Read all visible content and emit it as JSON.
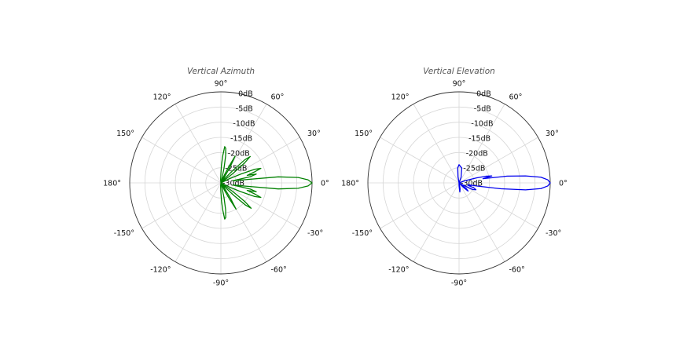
{
  "chart_data": [
    {
      "type": "polar-line",
      "title": "Vertical Azimuth",
      "color": "#008000",
      "angle_ticks": [
        "0°",
        "30°",
        "60°",
        "90°",
        "120°",
        "150°",
        "180°",
        "-150°",
        "-120°",
        "-90°",
        "-60°",
        "-30°"
      ],
      "radial_ticks": [
        "0dB",
        "-5dB",
        "-10dB",
        "-15dB",
        "-20dB",
        "-25dB",
        "-30dB"
      ],
      "r_range_dB": [
        -30,
        0
      ],
      "grid": true,
      "series": [
        {
          "angles_deg": [
            -180,
            -160,
            -140,
            -120,
            -110,
            -100,
            -95,
            -90,
            -88,
            -86,
            -84,
            -82,
            -80,
            -78,
            -76,
            -74,
            -70,
            -66,
            -64,
            -62,
            -60,
            -58,
            -56,
            -54,
            -50,
            -46,
            -44,
            -42,
            -40,
            -38,
            -36,
            -34,
            -30,
            -26,
            -24,
            -22,
            -20,
            -18,
            -16,
            -14,
            -12,
            -10,
            -8,
            -6,
            -4,
            -2,
            0,
            2,
            4,
            6,
            8,
            10,
            12,
            14,
            16,
            18,
            20,
            22,
            24,
            26,
            28,
            30,
            34,
            38,
            40,
            42,
            44,
            46,
            48,
            50,
            54,
            58,
            60,
            62,
            64,
            66,
            70,
            74,
            76,
            78,
            80,
            82,
            84,
            86,
            88,
            90,
            95,
            100,
            110,
            120,
            140,
            160,
            180
          ],
          "values_dB": [
            -30,
            -30,
            -30,
            -30,
            -30,
            -30,
            -29,
            -27,
            -24,
            -21,
            -18,
            -18.5,
            -21,
            -25,
            -29,
            -30,
            -30,
            -30,
            -27,
            -24,
            -20,
            -24,
            -28,
            -30,
            -30,
            -28,
            -24,
            -19,
            -17,
            -20,
            -25,
            -30,
            -30,
            -27,
            -23,
            -18,
            -16,
            -18.5,
            -21,
            -18,
            -20,
            -26,
            -23,
            -11,
            -4.5,
            -1.3,
            0,
            -1.3,
            -4.5,
            -11,
            -23,
            -26,
            -20,
            -18,
            -21,
            -18.5,
            -16,
            -18,
            -23,
            -27,
            -30,
            -30,
            -30,
            -25,
            -20,
            -17,
            -19,
            -24,
            -28,
            -30,
            -30,
            -28,
            -24,
            -20,
            -24,
            -27,
            -30,
            -30,
            -29,
            -25,
            -21,
            -18.5,
            -18,
            -21,
            -24,
            -27,
            -29,
            -30,
            -30,
            -30,
            -30,
            -30,
            -30
          ]
        }
      ]
    },
    {
      "type": "polar-line",
      "title": "Vertical Elevation",
      "color": "#0000ee",
      "angle_ticks": [
        "0°",
        "30°",
        "60°",
        "90°",
        "120°",
        "150°",
        "180°",
        "-150°",
        "-120°",
        "-90°",
        "-60°",
        "-30°"
      ],
      "radial_ticks": [
        "0dB",
        "-5dB",
        "-10dB",
        "-15dB",
        "-20dB",
        "-25dB",
        "-30dB"
      ],
      "r_range_dB": [
        -30,
        0
      ],
      "grid": true,
      "series": [
        {
          "angles_deg": [
            -180,
            -160,
            -140,
            -120,
            -100,
            -90,
            -85,
            -80,
            -75,
            -70,
            -60,
            -50,
            -46,
            -42,
            -38,
            -34,
            -30,
            -26,
            -22,
            -18,
            -16,
            -14,
            -12,
            -10,
            -8,
            -6,
            -4,
            -2,
            0,
            2,
            4,
            6,
            8,
            10,
            12,
            14,
            16,
            18,
            20,
            24,
            30,
            40,
            60,
            70,
            80,
            90,
            95,
            100,
            120,
            140,
            160,
            180
          ],
          "values_dB": [
            -30,
            -30,
            -30,
            -30,
            -30,
            -29,
            -27,
            -28,
            -30,
            -30,
            -30,
            -30,
            -28,
            -26,
            -27,
            -30,
            -29,
            -25,
            -24,
            -25,
            -27,
            -26,
            -27,
            -24,
            -16,
            -8,
            -3,
            -0.8,
            0,
            -0.8,
            -3,
            -8,
            -14,
            -22,
            -19,
            -21,
            -24,
            -27,
            -28,
            -30,
            -30,
            -30,
            -30,
            -28,
            -25,
            -24,
            -25,
            -28,
            -30,
            -30,
            -30,
            -30
          ]
        }
      ]
    }
  ]
}
